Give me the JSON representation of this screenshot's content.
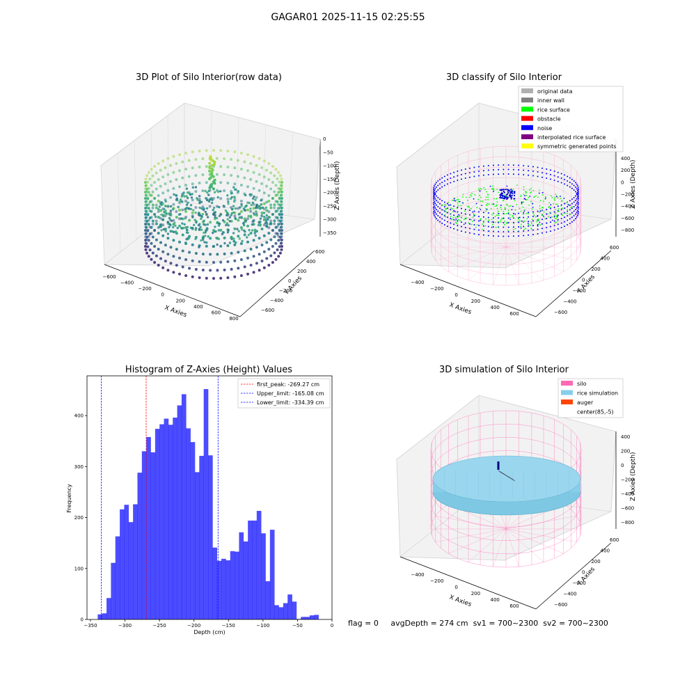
{
  "figure": {
    "suptitle": "GAGAR01 2025-11-15 02:25:55",
    "status": {
      "flag": "flag = 0",
      "avg_depth": "avgDepth = 274 cm",
      "sv1": "sv1 = 700~2300",
      "sv2": "sv2 = 700~2300"
    }
  },
  "panels": {
    "raw": {
      "title": "3D Plot of Silo Interior(row data)",
      "xlabel": "X Axies",
      "ylabel": "Y Axies",
      "zlabel": "Z Axies (Depth)",
      "xticks": [
        "−600",
        "−400",
        "−200",
        "0",
        "200",
        "400",
        "600",
        "800"
      ],
      "yticks": [
        "600",
        "400",
        "200",
        "0",
        "−200",
        "−400",
        "−600"
      ],
      "zticks": [
        "0",
        "−50",
        "−100",
        "−150",
        "−200",
        "−250",
        "−300",
        "−350"
      ]
    },
    "classify": {
      "title": "3D classify of Silo Interior",
      "xlabel": "X Axies",
      "ylabel": "Y Axies",
      "zlabel": "Z Axies (Depth)",
      "xticks": [
        "−400",
        "−200",
        "0",
        "200",
        "400",
        "600"
      ],
      "yticks": [
        "600",
        "400",
        "200",
        "0",
        "−200",
        "−400",
        "−600"
      ],
      "zticks": [
        "400",
        "200",
        "0",
        "−200",
        "−400",
        "−600",
        "−800"
      ],
      "legend": [
        {
          "label": "original data",
          "color": "#b0b0b0"
        },
        {
          "label": "inner wall",
          "color": "#808080"
        },
        {
          "label": "rice surface",
          "color": "#00ff00"
        },
        {
          "label": "obstacle",
          "color": "#ff0000"
        },
        {
          "label": "noise",
          "color": "#0000ff"
        },
        {
          "label": "interpolated rice surface",
          "color": "#800080"
        },
        {
          "label": "symmetric generated points",
          "color": "#ffff00"
        }
      ]
    },
    "sim": {
      "title": "3D simulation of Silo Interior",
      "xlabel": "X Axies",
      "ylabel": "Y Axies",
      "zlabel": "Z Axies (Depth)",
      "xticks": [
        "−400",
        "−200",
        "0",
        "200",
        "400",
        "600"
      ],
      "yticks": [
        "600",
        "400",
        "200",
        "0",
        "−200",
        "−400",
        "−600"
      ],
      "zticks": [
        "400",
        "200",
        "0",
        "−200",
        "−400",
        "−600",
        "−800"
      ],
      "legend": [
        {
          "label": "silo",
          "color": "#ff69b4"
        },
        {
          "label": "rice simulation",
          "color": "#87ceeb"
        },
        {
          "label": "auger",
          "color": "#ff4500"
        },
        {
          "label": "center(85,-5)",
          "color": null
        }
      ]
    }
  },
  "chart_data": {
    "type": "bar",
    "title": "Histogram of Z-Axies (Height) Values",
    "xlabel": "Depth (cm)",
    "ylabel": "Frequency",
    "xlim": [
      -355,
      0
    ],
    "ylim": [
      0,
      478
    ],
    "xticks": [
      -350,
      -300,
      -250,
      -200,
      -150,
      -100,
      -50,
      0
    ],
    "yticks": [
      0,
      100,
      200,
      300,
      400
    ],
    "bin_width": 6.4,
    "bin_start": -339.5,
    "values": [
      10,
      12,
      42,
      111,
      163,
      216,
      225,
      191,
      226,
      288,
      330,
      358,
      328,
      374,
      383,
      394,
      382,
      396,
      420,
      442,
      375,
      348,
      289,
      321,
      452,
      322,
      141,
      115,
      119,
      116,
      134,
      133,
      171,
      153,
      194,
      194,
      213,
      169,
      75,
      176,
      28,
      24,
      32,
      49,
      35,
      1,
      5,
      5,
      8,
      9
    ],
    "color": "#0000ff",
    "vlines": [
      {
        "name": "first_peak",
        "label": "first_peak: -269.27 cm",
        "x": -269.27,
        "color": "#ff0000"
      },
      {
        "name": "upper-limit",
        "label": "Upper_limit: -165.08 cm",
        "x": -165.08,
        "color": "#0000ff"
      },
      {
        "name": "lower-limit",
        "label": "Lower_limit: -334.39 cm",
        "x": -334.39,
        "color": "#0000ff"
      }
    ],
    "legend_position": "upper right",
    "grid": false
  }
}
